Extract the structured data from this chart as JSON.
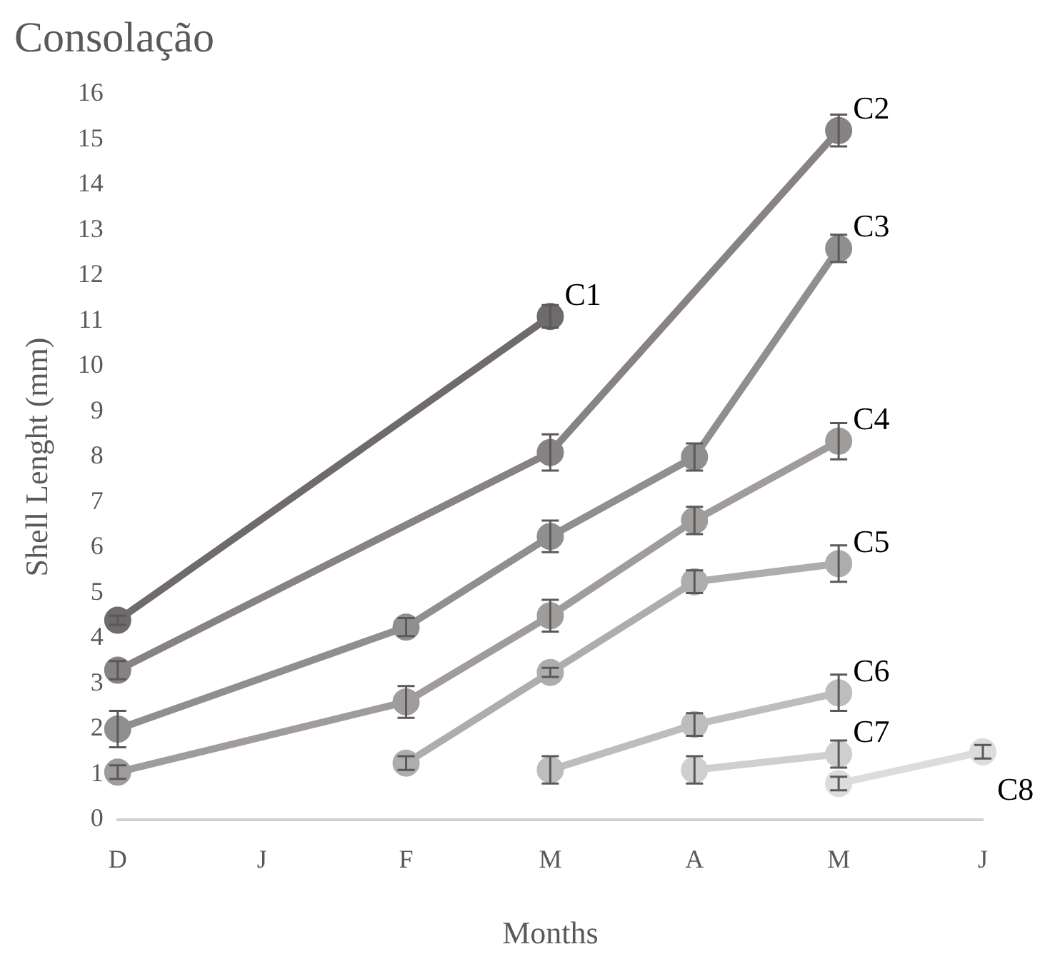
{
  "chart_data": {
    "type": "line",
    "title": "Consolação",
    "xlabel": "Months",
    "ylabel": "Shell Lenght (mm)",
    "categories": [
      "D",
      "J",
      "F",
      "M",
      "A",
      "M",
      "J"
    ],
    "ylim": [
      0,
      16
    ],
    "yticks": [
      0,
      1,
      2,
      3,
      4,
      5,
      6,
      7,
      8,
      9,
      10,
      11,
      12,
      13,
      14,
      15,
      16
    ],
    "grid": false,
    "legend": false,
    "marker": "circle",
    "line_style": "solid",
    "series": [
      {
        "name": "C1",
        "color": "#6f6a6b",
        "values": [
          4.4,
          null,
          null,
          11.1,
          null,
          null,
          null
        ],
        "errors": [
          0.1,
          null,
          null,
          0.25,
          null,
          null,
          null
        ]
      },
      {
        "name": "C2",
        "color": "#878283",
        "values": [
          3.3,
          null,
          null,
          8.1,
          null,
          15.2,
          null
        ],
        "errors": [
          0.2,
          null,
          null,
          0.4,
          null,
          0.35,
          null
        ]
      },
      {
        "name": "C3",
        "color": "#8f8f8f",
        "values": [
          2.0,
          null,
          4.25,
          6.25,
          8.0,
          12.6,
          null
        ],
        "errors": [
          0.4,
          null,
          0.2,
          0.35,
          0.3,
          0.3,
          null
        ]
      },
      {
        "name": "C4",
        "color": "#a09c9c",
        "values": [
          1.05,
          null,
          2.6,
          4.5,
          6.6,
          8.35,
          null
        ],
        "errors": [
          0.15,
          null,
          0.35,
          0.35,
          0.3,
          0.4,
          null
        ]
      },
      {
        "name": "C5",
        "color": "#adadad",
        "values": [
          null,
          null,
          1.25,
          3.25,
          5.25,
          5.65,
          null
        ],
        "errors": [
          null,
          null,
          0.15,
          0.1,
          0.25,
          0.4,
          null
        ]
      },
      {
        "name": "C6",
        "color": "#bdbdbd",
        "values": [
          null,
          null,
          null,
          1.1,
          2.1,
          2.8,
          null
        ],
        "errors": [
          null,
          null,
          null,
          0.3,
          0.25,
          0.4,
          null
        ]
      },
      {
        "name": "C7",
        "color": "#cfcfcf",
        "values": [
          null,
          null,
          null,
          null,
          1.1,
          1.45,
          null
        ],
        "errors": [
          null,
          null,
          null,
          null,
          0.3,
          0.3,
          null
        ]
      },
      {
        "name": "C8",
        "color": "#dcdcdc",
        "values": [
          null,
          null,
          null,
          null,
          null,
          0.8,
          1.5
        ],
        "errors": [
          null,
          null,
          null,
          null,
          null,
          0.15,
          0.15
        ]
      }
    ]
  }
}
